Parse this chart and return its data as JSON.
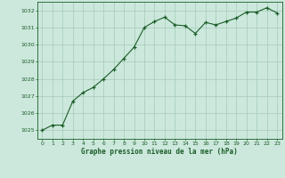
{
  "x": [
    0,
    1,
    2,
    3,
    4,
    5,
    6,
    7,
    8,
    9,
    10,
    11,
    12,
    13,
    14,
    15,
    16,
    17,
    18,
    19,
    20,
    21,
    22,
    23
  ],
  "y": [
    1025.0,
    1025.3,
    1025.3,
    1026.7,
    1027.2,
    1027.5,
    1028.0,
    1028.55,
    1029.2,
    1029.85,
    1031.0,
    1031.35,
    1031.6,
    1031.15,
    1031.1,
    1030.65,
    1031.3,
    1031.15,
    1031.35,
    1031.55,
    1031.9,
    1031.9,
    1032.15,
    1031.85
  ],
  "bg_color": "#cce8dc",
  "grid_color": "#aacfbe",
  "line_color": "#1a5c28",
  "marker_color": "#1a5c28",
  "xlabel": "Graphe pression niveau de la mer (hPa)",
  "xlabel_color": "#1a5c28",
  "tick_color": "#1a5c28",
  "ylim": [
    1024.5,
    1032.5
  ],
  "xlim": [
    -0.5,
    23.5
  ],
  "yticks": [
    1025,
    1026,
    1027,
    1028,
    1029,
    1030,
    1031,
    1032
  ],
  "xticks": [
    0,
    1,
    2,
    3,
    4,
    5,
    6,
    7,
    8,
    9,
    10,
    11,
    12,
    13,
    14,
    15,
    16,
    17,
    18,
    19,
    20,
    21,
    22,
    23
  ],
  "figsize": [
    3.2,
    2.0
  ],
  "dpi": 100
}
